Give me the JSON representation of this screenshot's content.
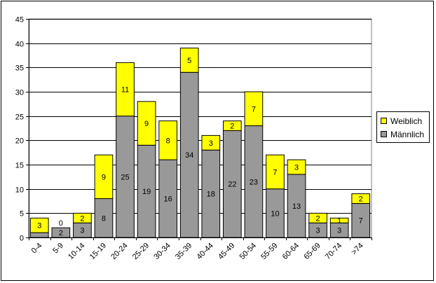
{
  "chart_data": {
    "type": "bar",
    "stacked": true,
    "categories": [
      "0-4",
      "5-9",
      "10-14",
      "15-19",
      "20-24",
      "25-29",
      "30-34",
      "35-39",
      "40-44",
      "45-49",
      "50-54",
      "55-59",
      "60-64",
      "65-69",
      "70-74",
      ">74"
    ],
    "series": [
      {
        "name": "Männlich",
        "color": "#999999",
        "values": [
          1,
          2,
          3,
          8,
          25,
          19,
          16,
          34,
          18,
          22,
          23,
          10,
          13,
          3,
          3,
          7
        ]
      },
      {
        "name": "Weiblich",
        "color": "#ffff00",
        "values": [
          3,
          0,
          2,
          9,
          11,
          9,
          8,
          5,
          3,
          2,
          7,
          7,
          3,
          2,
          1,
          2
        ]
      }
    ],
    "data_labels": {
      "Männlich": [
        "",
        "2",
        "3",
        "8",
        "25",
        "19",
        "16",
        "34",
        "18",
        "22",
        "23",
        "10",
        "13",
        "3",
        "3",
        "7"
      ],
      "Weiblich": [
        "3",
        "0",
        "2",
        "9",
        "11",
        "9",
        "8",
        "5",
        "3",
        "2",
        "7",
        "7",
        "3",
        "2",
        "1",
        "2"
      ]
    },
    "y_ticks": [
      "0",
      "5",
      "10",
      "15",
      "20",
      "25",
      "30",
      "35",
      "40",
      "45"
    ],
    "ylim": [
      0,
      45
    ],
    "grid": true,
    "legend_position": "right",
    "legend_order": [
      "Weiblich",
      "Männlich"
    ],
    "plot_background": "#ffffff",
    "title": "",
    "xlabel": "",
    "ylabel": ""
  }
}
